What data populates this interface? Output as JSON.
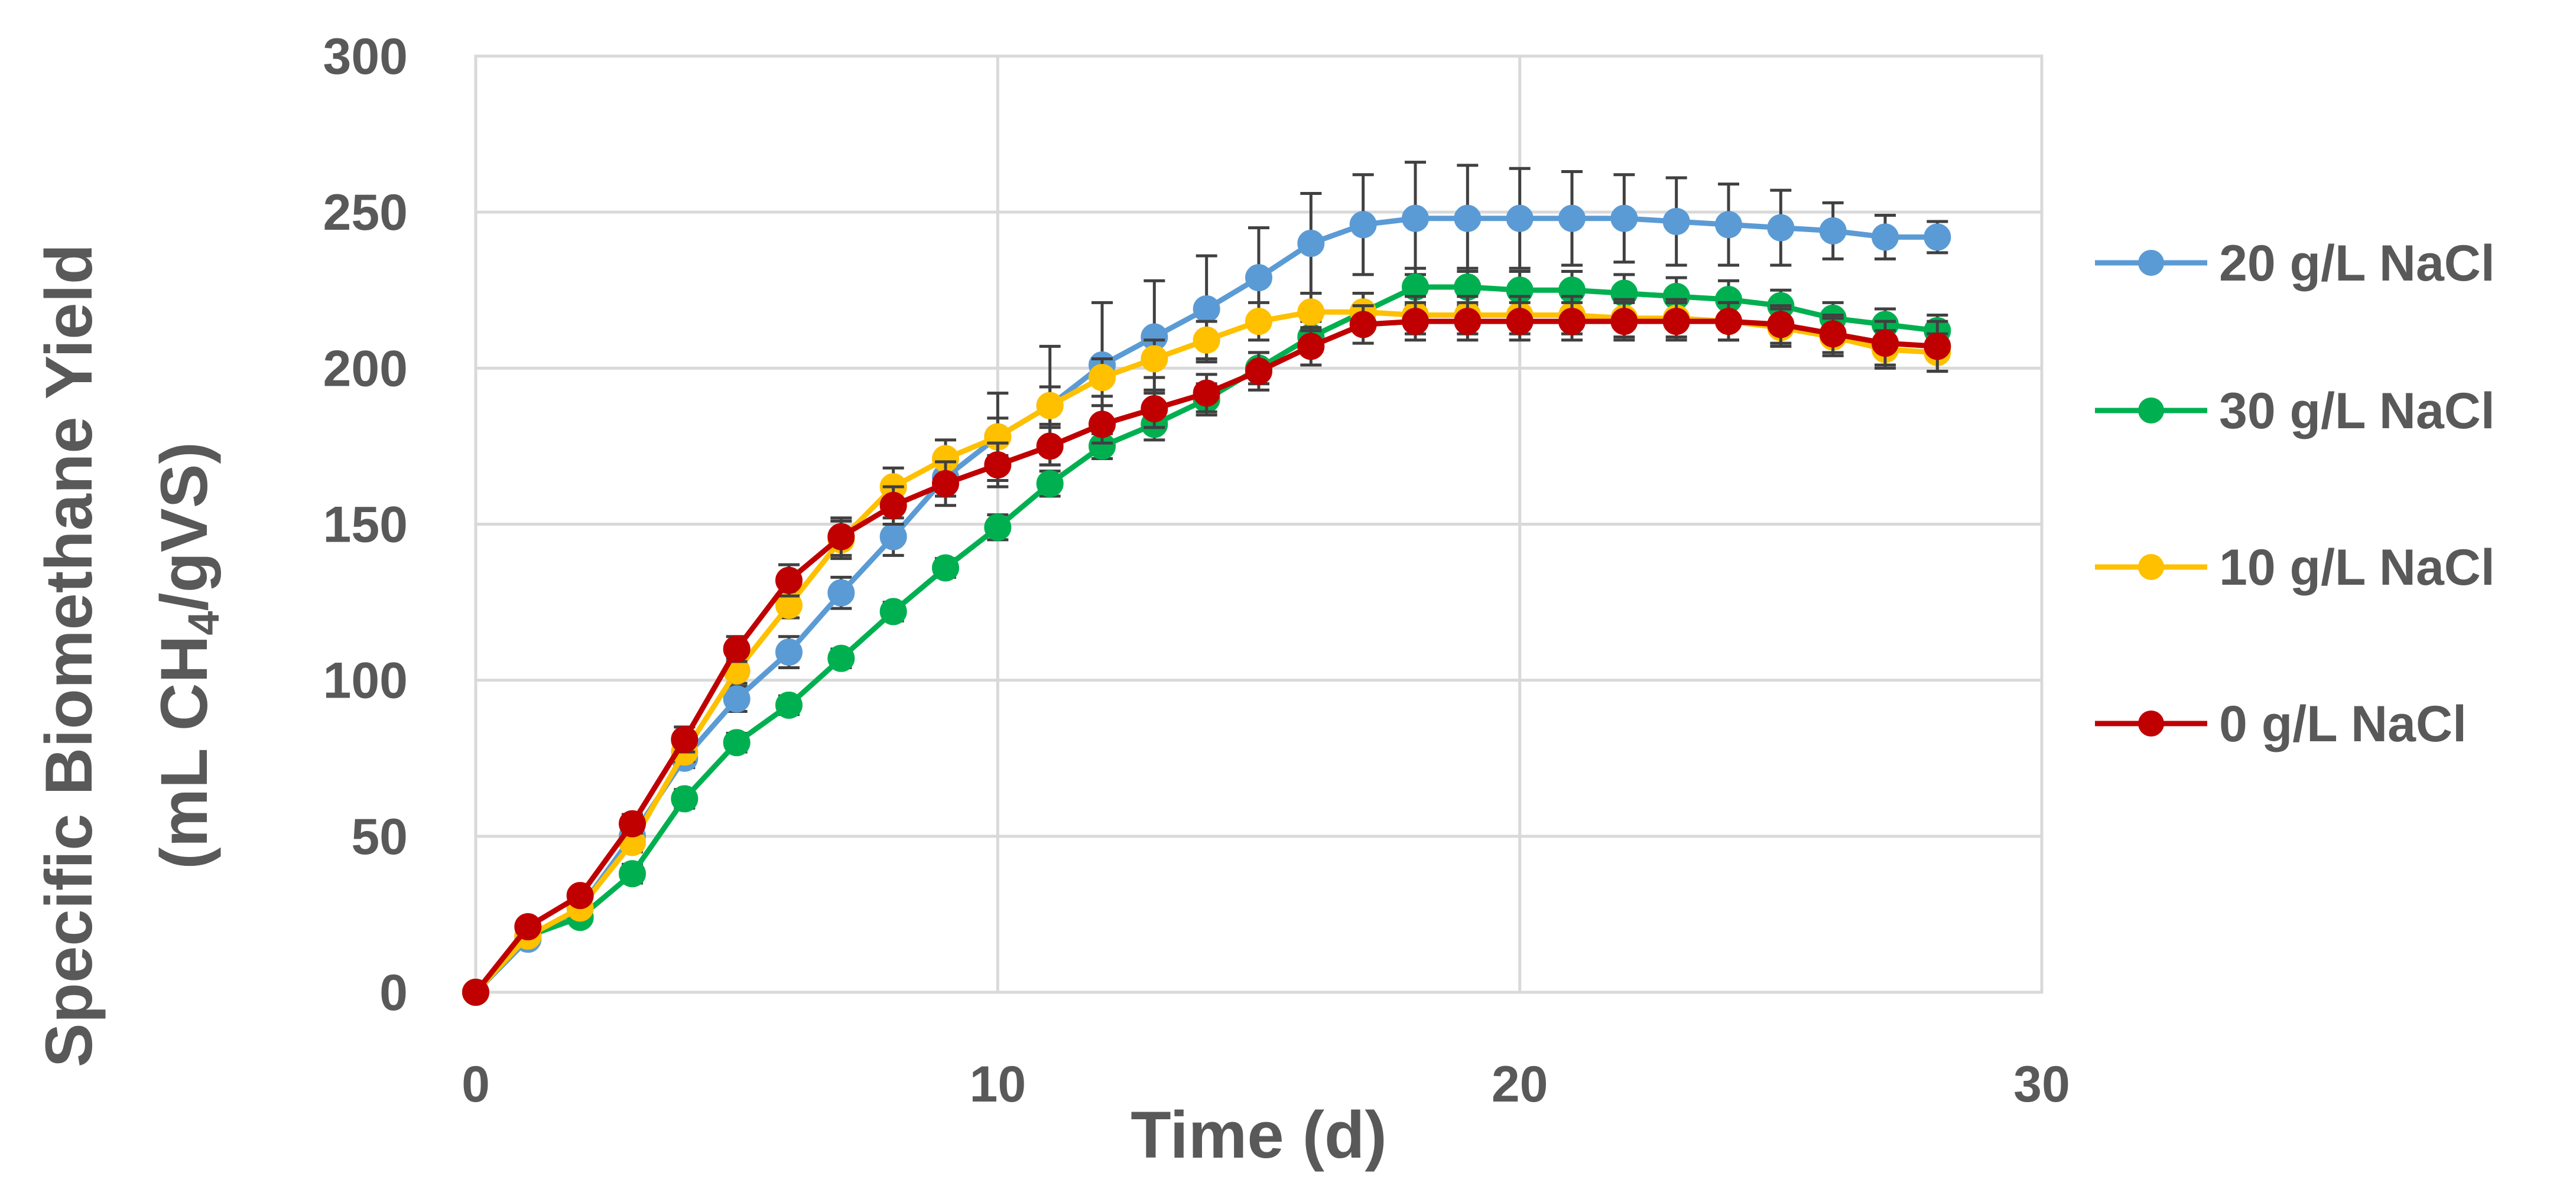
{
  "chart_data": {
    "type": "line",
    "title": "",
    "xlabel": "Time (d)",
    "ylabel_line1": "Specific Biomethane Yield",
    "ylabel_line2_prefix": "(mL CH",
    "ylabel_line2_sub": "4",
    "ylabel_line2_suffix": "/gVS)",
    "xlim": [
      0,
      30
    ],
    "ylim": [
      0,
      300
    ],
    "x_ticks": [
      "0",
      "10",
      "20",
      "30"
    ],
    "y_ticks": [
      "0",
      "50",
      "100",
      "150",
      "200",
      "250",
      "300"
    ],
    "grid": true,
    "legend_position": "right",
    "x": [
      0,
      1,
      2,
      3,
      4,
      5,
      6,
      7,
      8,
      9,
      10,
      11,
      12,
      13,
      14,
      15,
      16,
      17,
      18,
      19,
      20,
      21,
      22,
      23,
      24,
      25,
      26,
      27,
      28
    ],
    "series": [
      {
        "name": "20 g/L NaCl",
        "color": "#5B9BD5",
        "values": [
          0,
          17,
          27,
          50,
          75,
          94,
          109,
          128,
          146,
          165,
          178,
          188,
          201,
          210,
          219,
          229,
          240,
          246,
          248,
          248,
          248,
          248,
          248,
          247,
          246,
          245,
          244,
          242,
          242
        ],
        "errors": [
          0,
          2,
          2,
          3,
          3,
          4,
          5,
          5,
          6,
          6,
          14,
          19,
          20,
          18,
          17,
          16,
          16,
          16,
          18,
          17,
          16,
          15,
          14,
          14,
          13,
          12,
          9,
          7,
          5
        ]
      },
      {
        "name": "30 g/L NaCl",
        "color": "#00B050",
        "values": [
          0,
          18,
          24,
          38,
          62,
          80,
          92,
          107,
          122,
          136,
          149,
          163,
          175,
          182,
          190,
          200,
          210,
          218,
          226,
          226,
          225,
          225,
          224,
          223,
          222,
          220,
          216,
          214,
          212
        ],
        "errors": [
          0,
          2,
          2,
          3,
          3,
          3,
          3,
          3,
          3,
          3,
          4,
          4,
          4,
          5,
          5,
          5,
          5,
          6,
          6,
          6,
          6,
          6,
          6,
          6,
          6,
          5,
          5,
          5,
          5
        ]
      },
      {
        "name": "10 g/L NaCl",
        "color": "#FFC000",
        "values": [
          0,
          18,
          27,
          48,
          77,
          103,
          124,
          145,
          162,
          171,
          178,
          188,
          197,
          203,
          209,
          215,
          218,
          218,
          217,
          217,
          217,
          217,
          216,
          216,
          215,
          213,
          210,
          206,
          205
        ],
        "errors": [
          0,
          2,
          2,
          3,
          3,
          4,
          4,
          6,
          6,
          6,
          6,
          6,
          6,
          6,
          6,
          6,
          6,
          6,
          6,
          6,
          6,
          6,
          6,
          6,
          6,
          6,
          6,
          6,
          6
        ]
      },
      {
        "name": "0 g/L NaCl",
        "color": "#C00000",
        "values": [
          0,
          21,
          31,
          54,
          81,
          110,
          132,
          146,
          156,
          163,
          169,
          175,
          182,
          187,
          192,
          199,
          207,
          214,
          215,
          215,
          215,
          215,
          215,
          215,
          215,
          214,
          211,
          208,
          207
        ],
        "errors": [
          0,
          2,
          2,
          3,
          4,
          4,
          5,
          6,
          6,
          7,
          7,
          6,
          6,
          6,
          6,
          6,
          6,
          6,
          6,
          6,
          6,
          6,
          6,
          6,
          6,
          6,
          6,
          7,
          8
        ]
      }
    ]
  }
}
